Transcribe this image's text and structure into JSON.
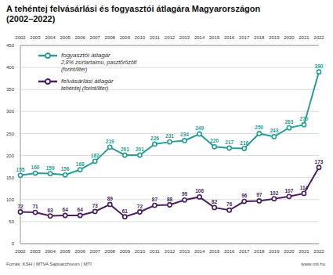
{
  "chart_data": {
    "type": "line",
    "title": "A tehéntej felvásárlási és fogyasztói átlagára Magyarországon",
    "subtitle": "(2002–2022)",
    "categories": [
      "2002",
      "2003",
      "2004",
      "2005",
      "2006",
      "2007",
      "2008",
      "2009",
      "2010",
      "2011",
      "2012",
      "2013",
      "2014",
      "2015",
      "2016",
      "2017",
      "2018",
      "2019",
      "2020",
      "2021",
      "2022"
    ],
    "series": [
      {
        "name": "fogyasztói átlagár",
        "note": [
          "2,8% zsírtartalmú, pasztőrözött",
          "(forint/liter)"
        ],
        "color": "#2a9c98",
        "values": [
          155,
          160,
          159,
          156,
          168,
          187,
          219,
          201,
          201,
          226,
          231,
          234,
          249,
          220,
          217,
          216,
          250,
          243,
          263,
          270,
          390
        ]
      },
      {
        "name": "felvásárlási átlagár",
        "note": [
          "tehéntej (forint/liter)"
        ],
        "color": "#4a1f5c",
        "values": [
          72,
          71,
          63,
          64,
          64,
          73,
          89,
          61,
          72,
          87,
          88,
          99,
          106,
          82,
          76,
          96,
          97,
          102,
          107,
          114,
          173
        ]
      }
    ],
    "ylim": [
      0,
      450
    ],
    "yticks": [
      0,
      50,
      100,
      150,
      200,
      250,
      300,
      350,
      400,
      450
    ],
    "grid": true,
    "legend": "top-left",
    "data_labels": true,
    "marker": "circle",
    "line_style": "solid",
    "source": "Forrás: KSH | MTVA Sajtóarchívum | MTI",
    "website": "www.mti.hu"
  }
}
